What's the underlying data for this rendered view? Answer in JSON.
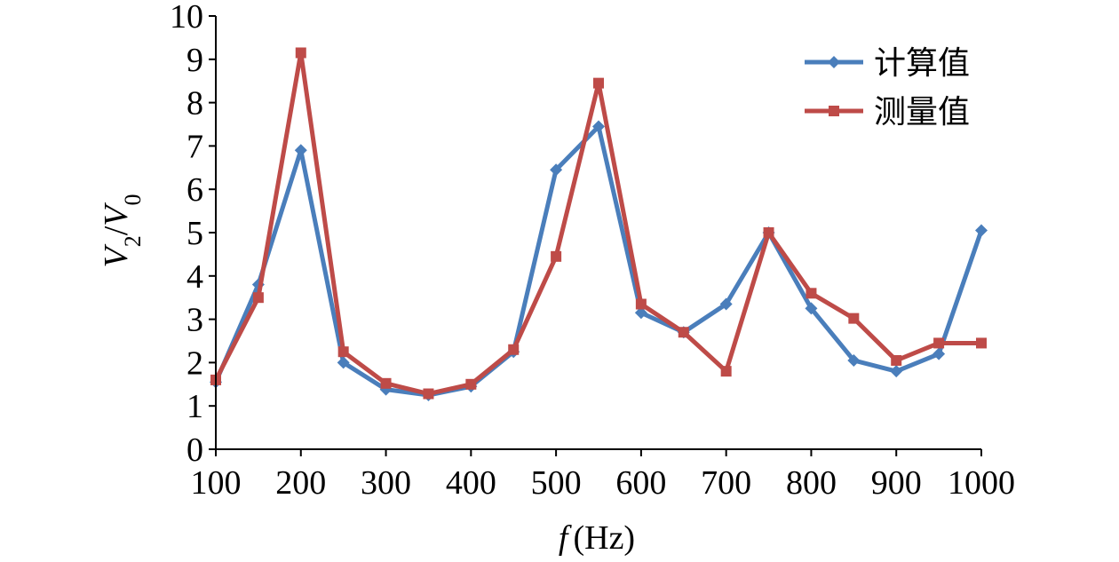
{
  "chart_data": {
    "type": "line",
    "x": [
      100,
      150,
      200,
      250,
      300,
      350,
      400,
      450,
      500,
      550,
      600,
      650,
      700,
      750,
      800,
      850,
      900,
      950,
      1000
    ],
    "xlim": [
      100,
      1000
    ],
    "ylim": [
      0,
      10
    ],
    "xticks": [
      "100",
      "200",
      "300",
      "400",
      "500",
      "600",
      "700",
      "800",
      "900",
      "1000"
    ],
    "yticks": [
      "0",
      "1",
      "2",
      "3",
      "4",
      "5",
      "6",
      "7",
      "8",
      "9",
      "10"
    ],
    "xlabel_italic": "f",
    "xlabel_unit": "(Hz)",
    "ylabel": {
      "v1": "V",
      "sub1": "2",
      "slash": "/",
      "v2": "V",
      "sub2": "0"
    },
    "grid": false,
    "legend_position": "top-right",
    "series": [
      {
        "name": "计算值",
        "color": "#4a7ebb",
        "marker": "diamond",
        "values": [
          1.55,
          3.8,
          6.9,
          2.0,
          1.38,
          1.25,
          1.45,
          2.25,
          6.45,
          7.45,
          3.15,
          2.7,
          3.35,
          5.0,
          3.25,
          2.05,
          1.8,
          2.2,
          5.05
        ]
      },
      {
        "name": "测量值",
        "color": "#be4b48",
        "marker": "square",
        "values": [
          1.6,
          3.5,
          9.15,
          2.25,
          1.52,
          1.28,
          1.5,
          2.3,
          4.45,
          8.45,
          3.35,
          2.7,
          1.8,
          5.0,
          3.6,
          3.02,
          2.05,
          2.45,
          2.45
        ]
      }
    ]
  }
}
